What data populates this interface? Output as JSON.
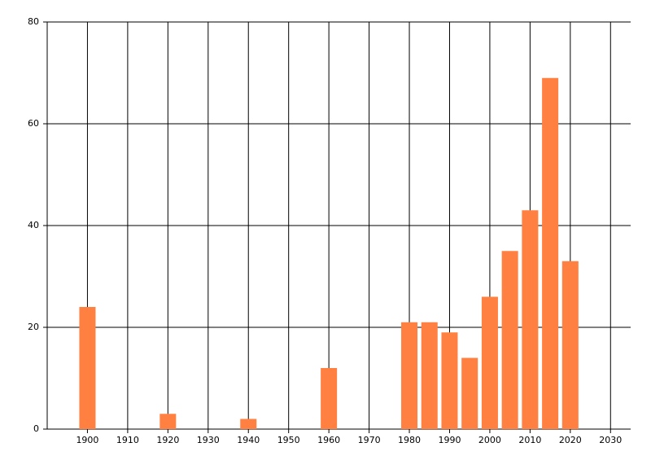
{
  "chart_data": {
    "type": "bar",
    "x": [
      1900,
      1920,
      1940,
      1960,
      1980,
      1985,
      1990,
      1995,
      2000,
      2005,
      2010,
      2015,
      2020
    ],
    "values": [
      24,
      3,
      2,
      12,
      21,
      21,
      19,
      14,
      26,
      35,
      43,
      69,
      33
    ],
    "color": "#ff8040",
    "xlim": [
      1890,
      2035
    ],
    "xticks": [
      1900,
      1910,
      1920,
      1930,
      1940,
      1950,
      1960,
      1970,
      1980,
      1990,
      2000,
      2010,
      2020,
      2030
    ],
    "ylim": [
      0,
      80
    ],
    "yticks": [
      0,
      20,
      40,
      60,
      80
    ],
    "grid": true
  }
}
